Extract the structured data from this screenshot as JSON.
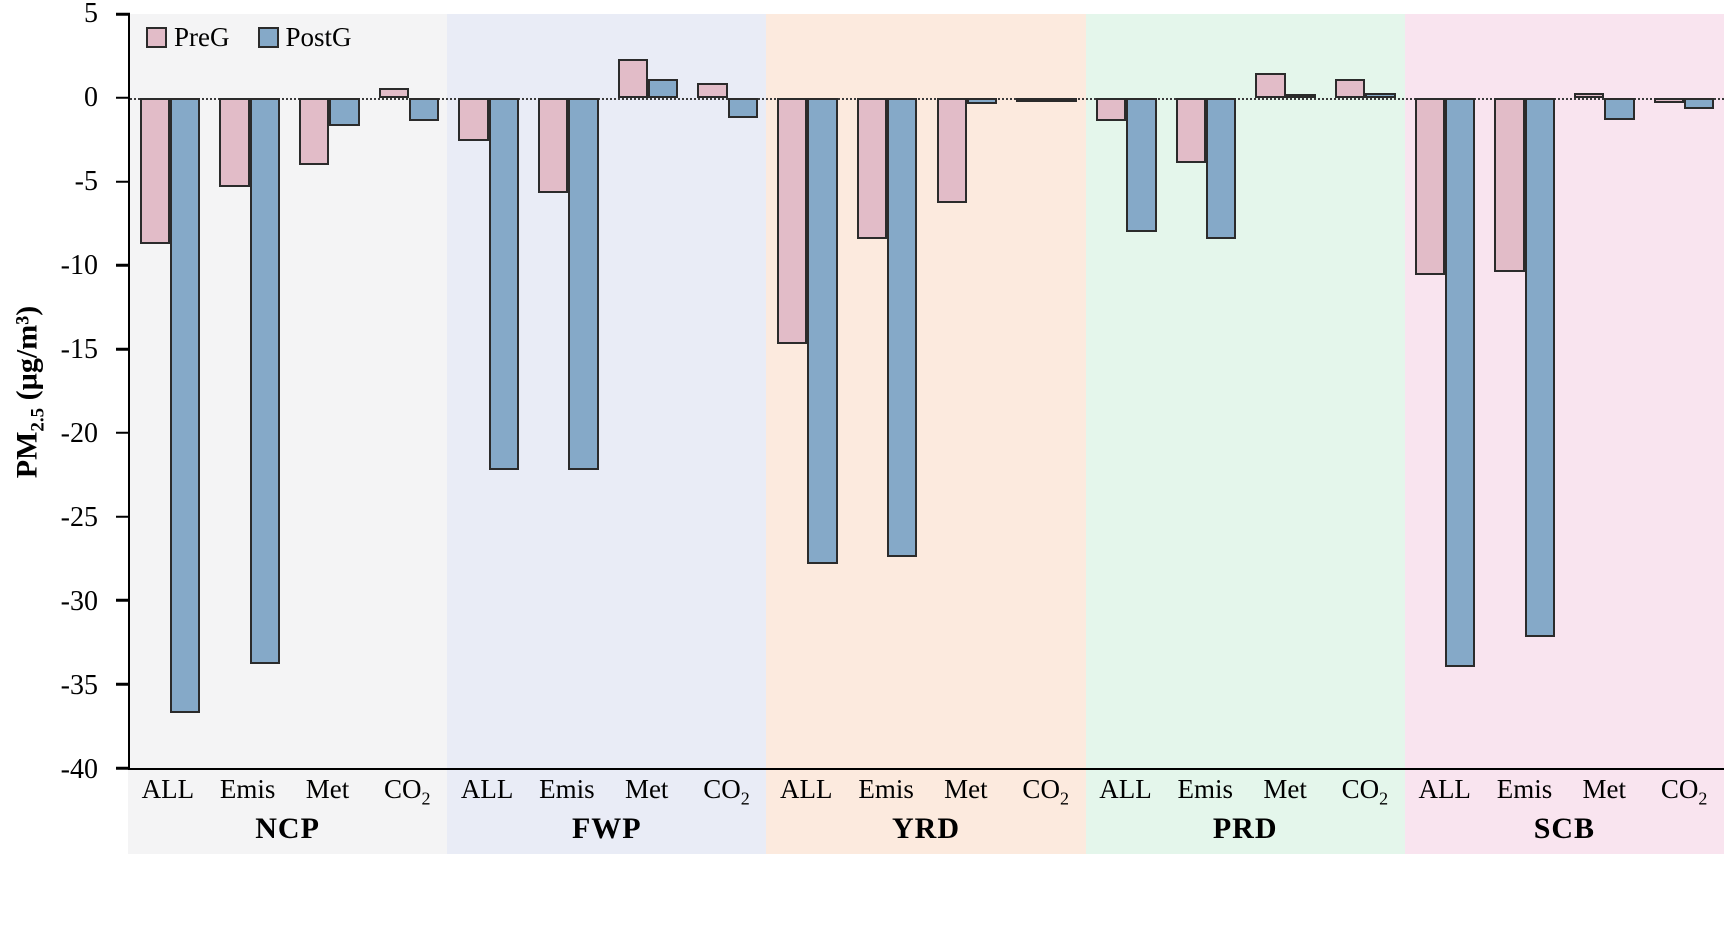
{
  "chart_data": {
    "type": "bar",
    "title": "",
    "ylabel": "PM2.5 (µg/m³)",
    "ylabel_parts": {
      "prefix": "PM",
      "sub": "2.5",
      "suffix": " (µg/m³)"
    },
    "ylim": [
      -40,
      5
    ],
    "yticks": [
      5,
      0,
      -5,
      -10,
      -15,
      -20,
      -25,
      -30,
      -35,
      -40
    ],
    "grid": "zero-dotted-line-only",
    "legend_position": "top-left-inside",
    "categories": [
      {
        "label": "ALL"
      },
      {
        "label": "Emis"
      },
      {
        "label": "Met"
      },
      {
        "label": "CO",
        "sub": "2"
      }
    ],
    "series": [
      {
        "name": "PreG",
        "color": "#e2bcc8"
      },
      {
        "name": "PostG",
        "color": "#85a9c8"
      }
    ],
    "bar_border_color": "#2b2b2b",
    "regions": [
      {
        "name": "NCP",
        "band_color": "#f4f4f5",
        "values": {
          "PreG": [
            -8.7,
            -5.3,
            -4.0,
            0.6
          ],
          "PostG": [
            -36.7,
            -33.8,
            -1.7,
            -1.4
          ]
        }
      },
      {
        "name": "FWP",
        "band_color": "#e9ecf6",
        "values": {
          "PreG": [
            -2.6,
            -5.7,
            2.3,
            0.9
          ],
          "PostG": [
            -22.2,
            -22.2,
            1.1,
            -1.2
          ]
        }
      },
      {
        "name": "YRD",
        "band_color": "#fceade",
        "values": {
          "PreG": [
            -14.7,
            -8.4,
            -6.3,
            -0.1
          ],
          "PostG": [
            -27.8,
            -27.4,
            -0.4,
            -0.1
          ]
        }
      },
      {
        "name": "PRD",
        "band_color": "#e4f6eb",
        "values": {
          "PreG": [
            -1.4,
            -3.9,
            1.5,
            1.1
          ],
          "PostG": [
            -8.0,
            -8.4,
            0.2,
            0.3
          ]
        }
      },
      {
        "name": "SCB",
        "band_color": "#f9e4ef",
        "values": {
          "PreG": [
            -10.6,
            -10.4,
            0.3,
            -0.3
          ],
          "PostG": [
            -34.0,
            -32.2,
            -1.3,
            -0.7
          ]
        }
      }
    ]
  }
}
